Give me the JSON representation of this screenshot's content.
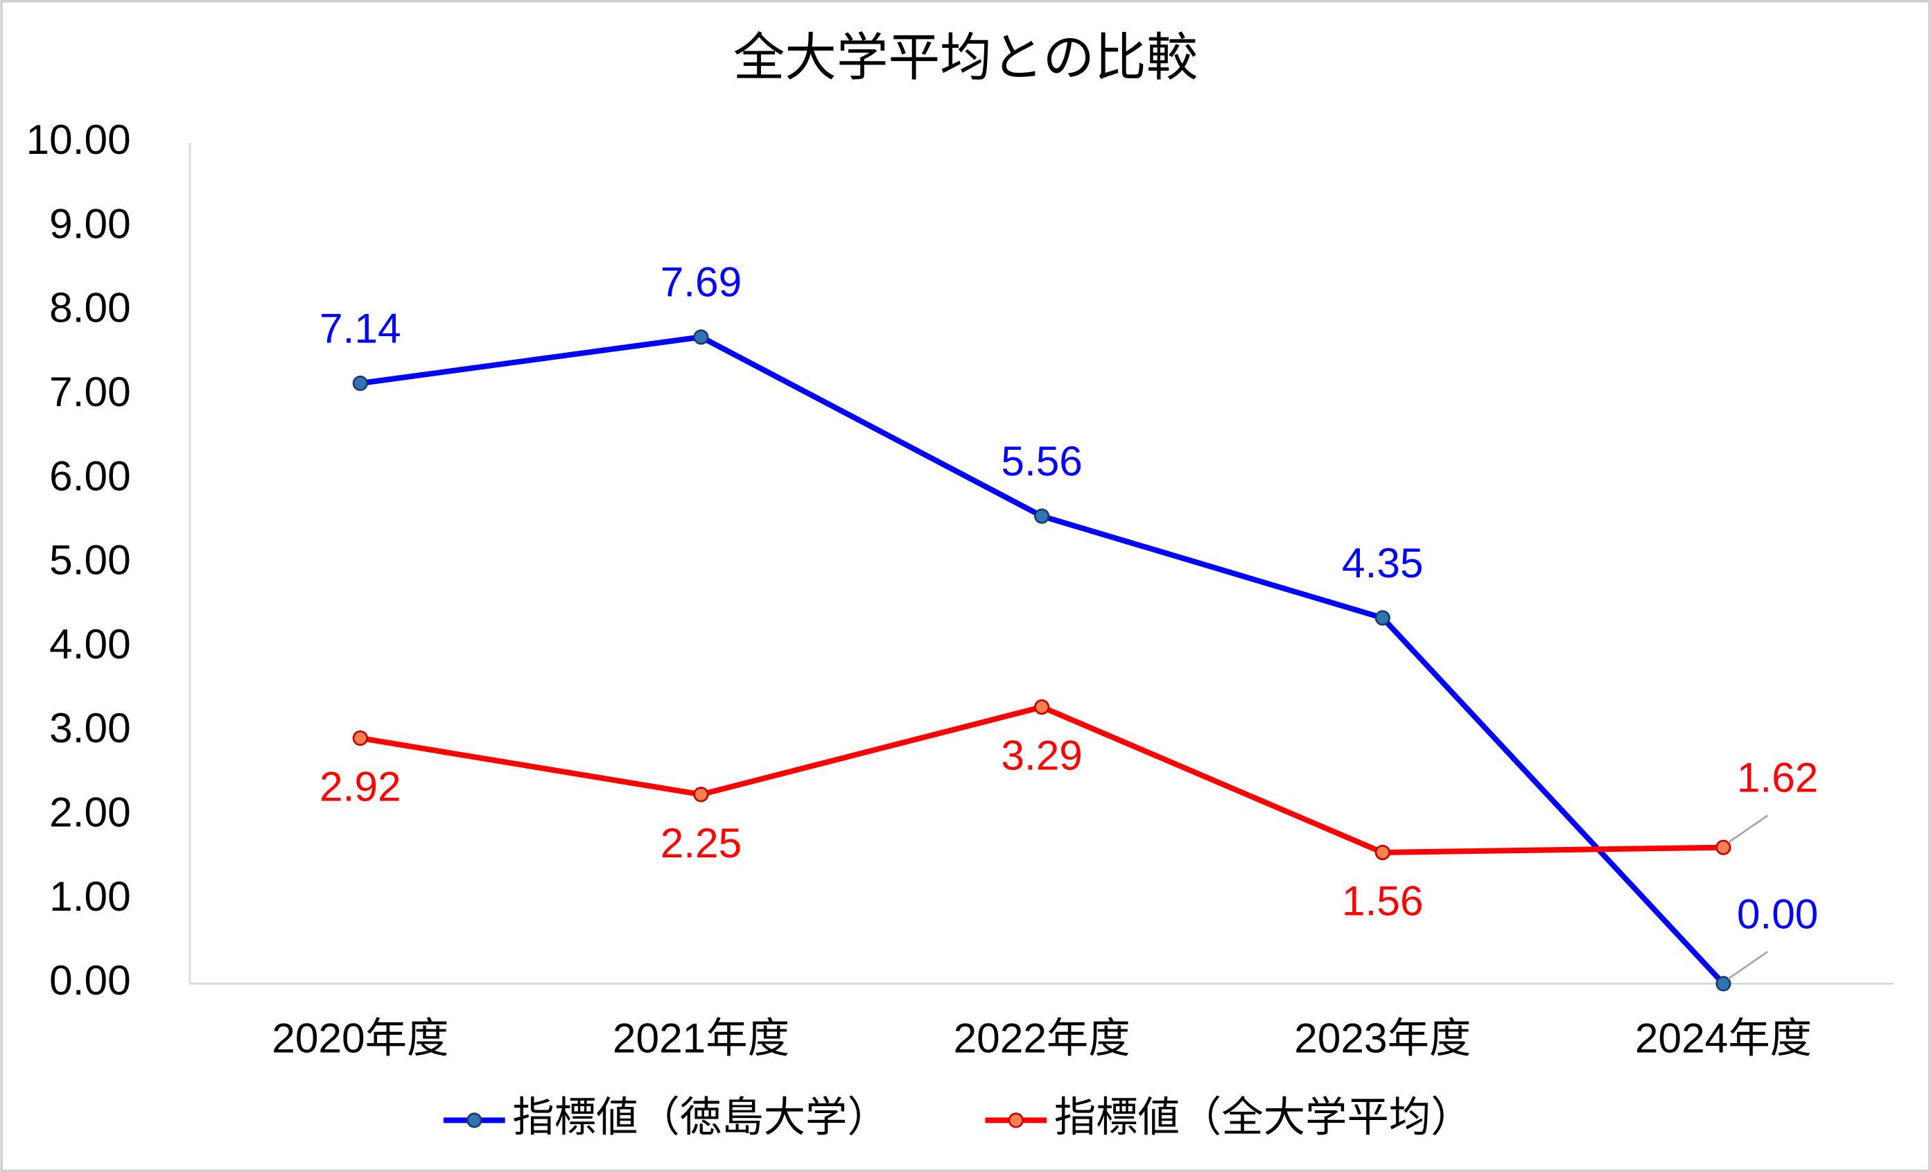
{
  "chart_data": {
    "type": "line",
    "title": "全大学平均との比較",
    "categories": [
      "2020年度",
      "2021年度",
      "2022年度",
      "2023年度",
      "2024年度"
    ],
    "series": [
      {
        "name": "指標値（徳島大学）",
        "color": "#0000ff",
        "values": [
          7.14,
          7.69,
          5.56,
          4.35,
          0
        ],
        "value_labels": [
          "7.14",
          "7.69",
          "5.56",
          "4.35",
          "0.00"
        ]
      },
      {
        "name": "指標値（全大学平均）",
        "color": "#ff0000",
        "values": [
          2.92,
          2.25,
          3.29,
          1.56,
          1.62
        ],
        "value_labels": [
          "2.92",
          "2.25",
          "3.29",
          "1.56",
          "1.62"
        ]
      }
    ],
    "ylim": [
      0,
      10
    ],
    "yticks": [
      {
        "value": 0,
        "label": "0.00"
      },
      {
        "value": 1,
        "label": "1.00"
      },
      {
        "value": 2,
        "label": "2.00"
      },
      {
        "value": 3,
        "label": "3.00"
      },
      {
        "value": 4,
        "label": "4.00"
      },
      {
        "value": 5,
        "label": "5.00"
      },
      {
        "value": 6,
        "label": "6.00"
      },
      {
        "value": 7,
        "label": "7.00"
      },
      {
        "value": 8,
        "label": "8.00"
      },
      {
        "value": 9,
        "label": "9.00"
      },
      {
        "value": 10,
        "label": "10.00"
      }
    ],
    "grid": false,
    "legend": "bottom"
  }
}
